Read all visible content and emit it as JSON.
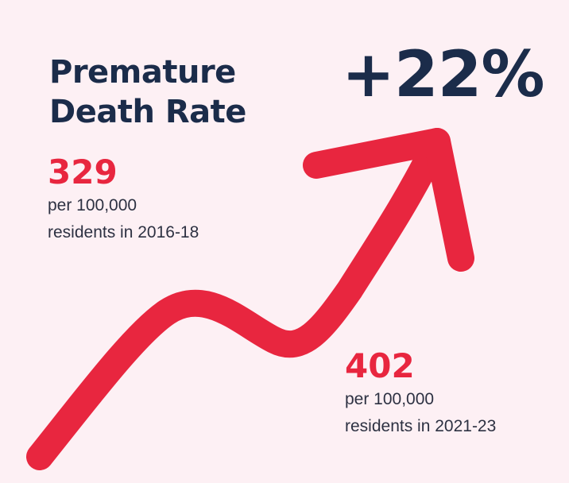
{
  "title": {
    "line1": "Premature",
    "line2": "Death Rate"
  },
  "change": {
    "label": "+22%",
    "value_percent": 22
  },
  "before": {
    "value": "329",
    "unit": "per 100,000",
    "period": "residents in 2016-18"
  },
  "after": {
    "value": "402",
    "unit": "per 100,000",
    "period": "residents in 2021-23"
  },
  "colors": {
    "background": "#fdf0f4",
    "accent": "#e8263f",
    "heading": "#1b2c4a",
    "body_text": "#2d3142"
  },
  "icons": {
    "trend": "trend-up-arrow-icon"
  }
}
